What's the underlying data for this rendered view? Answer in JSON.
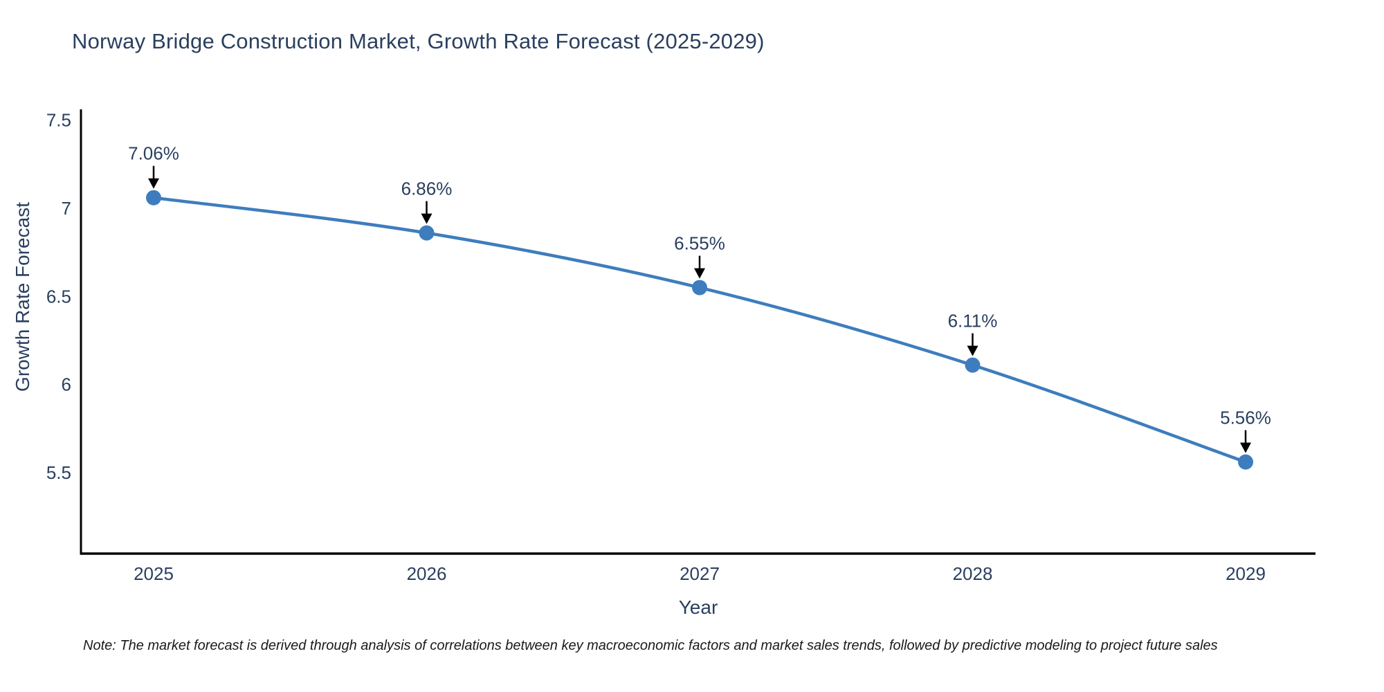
{
  "chart_data": {
    "type": "line",
    "title": "Norway Bridge Construction Market, Growth Rate Forecast (2025-2029)",
    "x": [
      2025,
      2026,
      2027,
      2028,
      2029
    ],
    "series": [
      {
        "name": "Growth Rate Forecast",
        "values": [
          7.06,
          6.86,
          6.55,
          6.11,
          5.56
        ]
      }
    ],
    "point_labels": [
      "7.06%",
      "6.86%",
      "6.55%",
      "6.11%",
      "5.56%"
    ],
    "xlabel": "Year",
    "ylabel": "Growth Rate Forecast",
    "ytick_labels": [
      "5.5",
      "6",
      "6.5",
      "7",
      "7.5"
    ],
    "ytick_values": [
      5.5,
      6,
      6.5,
      7,
      7.5
    ],
    "ylim": [
      5.04,
      7.57
    ],
    "grid": false,
    "legend": "none",
    "marker_style": "circle-with-down-arrow-annotation",
    "colors": {
      "line": "#3e7dbd",
      "marker": "#3e7dbd",
      "axis": "#000000",
      "tick_text": "#2a3f5f",
      "annotation_text": "#2a3f5f",
      "annotation_arrow": "#000000",
      "note_text": "#1a1a1a"
    },
    "note": "Note: The market forecast is derived through analysis of correlations between key macroeconomic factors and market sales trends, followed by predictive modeling to project future sales"
  }
}
